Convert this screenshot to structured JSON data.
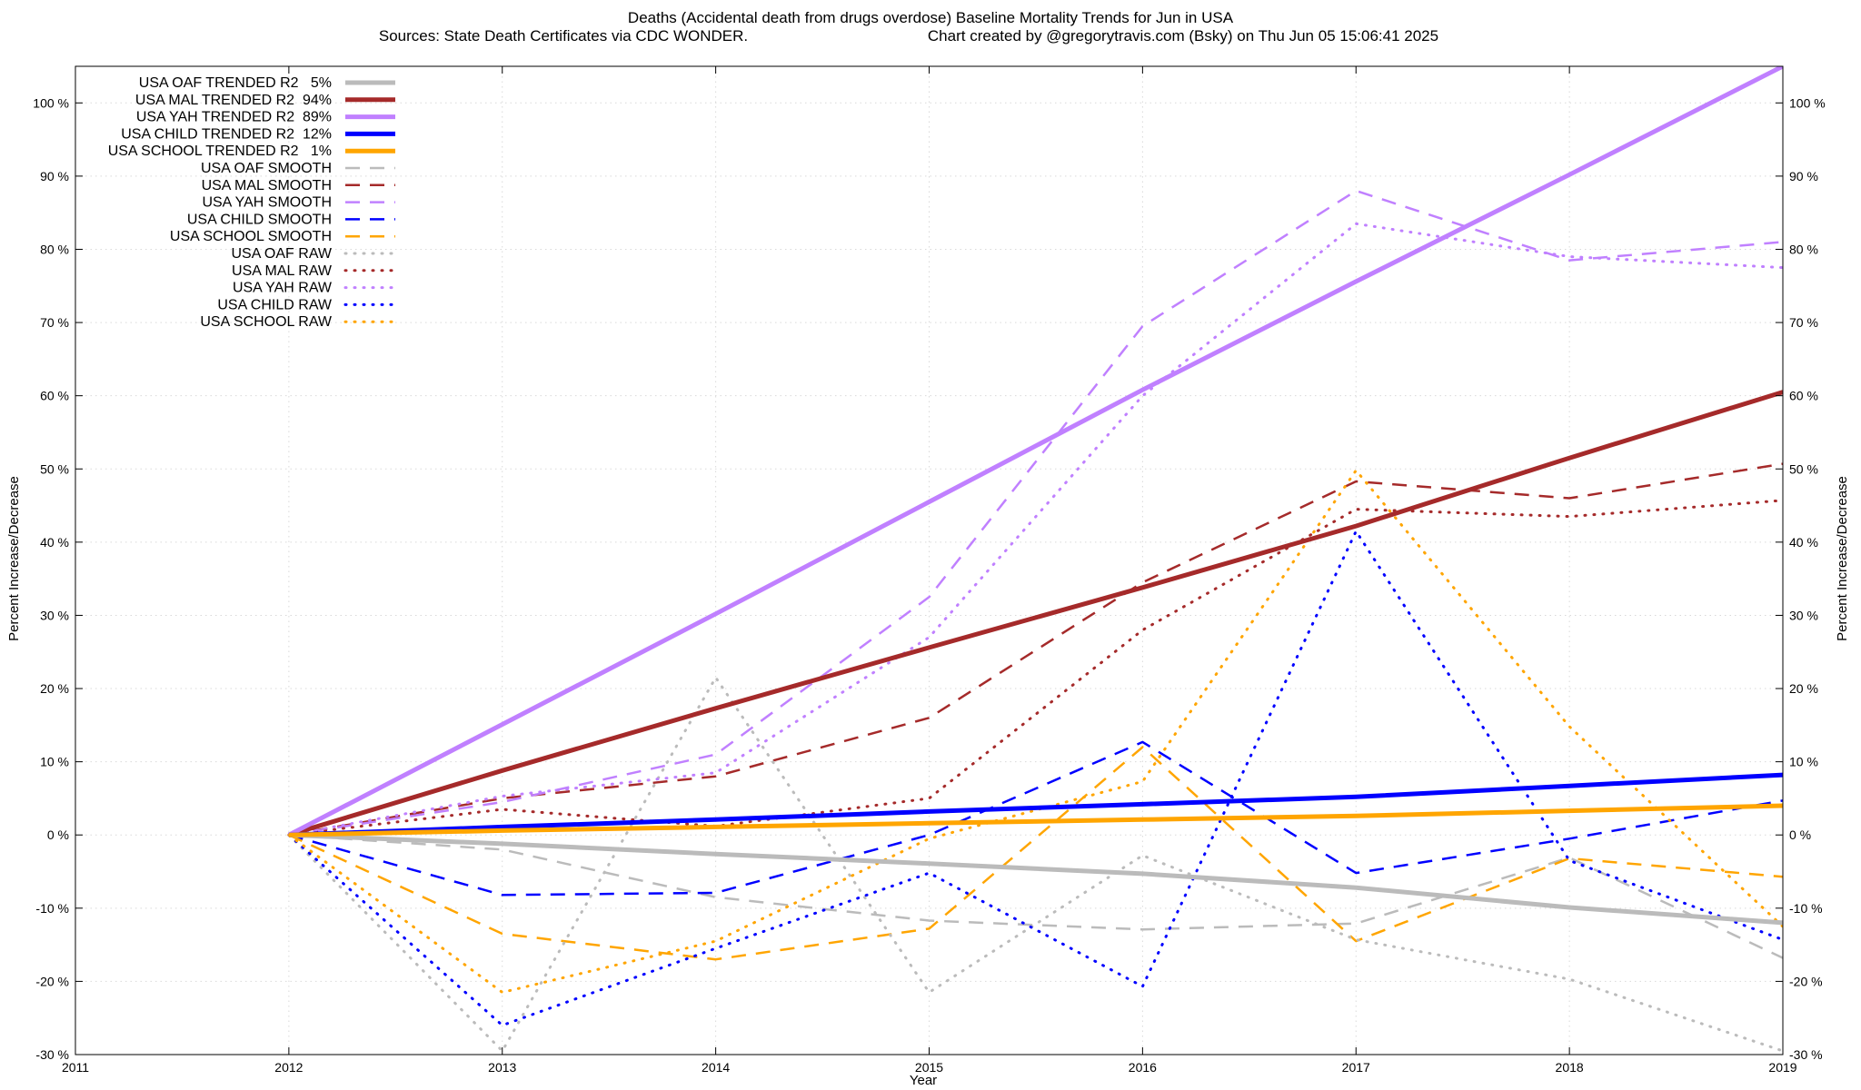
{
  "chart_data": {
    "type": "line",
    "title": "Deaths (Accidental death from drugs overdose)  Baseline Mortality Trends for Jun in USA",
    "subtitle_left": "Sources: State Death Certificates via CDC WONDER.",
    "subtitle_right": "Chart created by @gregorytravis.com (Bsky) on Thu Jun 05 15:06:41 2025",
    "xlabel": "Year",
    "ylabel_left": "Percent Increase/Decrease",
    "ylabel_right": "Percent Increase/Decrease",
    "xlim": [
      2011,
      2019
    ],
    "ylim": [
      -30,
      105
    ],
    "x_ticks": [
      2011,
      2012,
      2013,
      2014,
      2015,
      2016,
      2017,
      2018,
      2019
    ],
    "x_tick_labels": [
      "2011",
      "2012",
      "2013",
      "2014",
      "2015",
      "2016",
      "2017",
      "2018",
      "2019"
    ],
    "y_ticks": [
      -30,
      -20,
      -10,
      0,
      10,
      20,
      30,
      40,
      50,
      60,
      70,
      80,
      90,
      100
    ],
    "y_tick_labels": [
      "-30 %",
      "-20 %",
      "-10 %",
      "0 %",
      "10 %",
      "20 %",
      "30 %",
      "40 %",
      "50 %",
      "60 %",
      "70 %",
      "80 %",
      "90 %",
      "100 %"
    ],
    "grid": true,
    "legend_position": "top-left",
    "series": [
      {
        "name": "USA OAF TRENDED R2   5%",
        "style": "solid",
        "color": "#bbbbbb",
        "x": [
          2012,
          2013,
          2014,
          2015,
          2016,
          2017,
          2018,
          2019
        ],
        "values": [
          0,
          -1.2,
          -2.6,
          -3.9,
          -5.3,
          -7.2,
          -9.9,
          -12.0
        ]
      },
      {
        "name": "USA MAL TRENDED R2  94%",
        "style": "solid",
        "color": "#a52a2a",
        "x": [
          2012,
          2013,
          2014,
          2015,
          2016,
          2017,
          2018,
          2019
        ],
        "values": [
          0,
          8.8,
          17.3,
          25.6,
          33.8,
          42.2,
          51.5,
          60.5
        ]
      },
      {
        "name": "USA YAH TRENDED R2  89%",
        "style": "solid",
        "color": "#c080ff",
        "x": [
          2012,
          2013,
          2014,
          2015,
          2016,
          2017,
          2018,
          2019
        ],
        "values": [
          0,
          15.1,
          30.2,
          45.5,
          60.8,
          75.6,
          90.2,
          105
        ]
      },
      {
        "name": "USA CHILD TRENDED R2  12%",
        "style": "solid",
        "color": "#0000ff",
        "x": [
          2012,
          2013,
          2014,
          2015,
          2016,
          2017,
          2018,
          2019
        ],
        "values": [
          0,
          1.1,
          2.1,
          3.2,
          4.2,
          5.2,
          6.7,
          8.2
        ]
      },
      {
        "name": "USA SCHOOL TRENDED R2   1%",
        "style": "solid",
        "color": "#ffa500",
        "x": [
          2012,
          2013,
          2014,
          2015,
          2016,
          2017,
          2018,
          2019
        ],
        "values": [
          0,
          0.6,
          1.1,
          1.6,
          2.1,
          2.6,
          3.3,
          4.0
        ]
      },
      {
        "name": "USA OAF SMOOTH",
        "style": "dashed",
        "color": "#bbbbbb",
        "x": [
          2012,
          2013,
          2014,
          2015,
          2016,
          2017,
          2018,
          2019
        ],
        "values": [
          0,
          -2.0,
          -8.5,
          -11.7,
          -12.9,
          -12.1,
          -3.1,
          -16.8
        ]
      },
      {
        "name": "USA MAL SMOOTH",
        "style": "dashed",
        "color": "#a52a2a",
        "x": [
          2012,
          2013,
          2014,
          2015,
          2016,
          2017,
          2018,
          2019
        ],
        "values": [
          0,
          5.0,
          8.0,
          16.0,
          34.5,
          48.3,
          46.0,
          50.7
        ]
      },
      {
        "name": "USA YAH SMOOTH",
        "style": "dashed",
        "color": "#c080ff",
        "x": [
          2012,
          2013,
          2014,
          2015,
          2016,
          2017,
          2018,
          2019
        ],
        "values": [
          0,
          4.5,
          11.0,
          32.5,
          69.5,
          88.0,
          78.5,
          81.0
        ]
      },
      {
        "name": "USA CHILD SMOOTH",
        "style": "dashed",
        "color": "#0000ff",
        "x": [
          2012,
          2013,
          2014,
          2015,
          2016,
          2017,
          2018,
          2019
        ],
        "values": [
          0,
          -8.2,
          -7.9,
          0.0,
          12.7,
          -5.2,
          -0.5,
          4.7
        ]
      },
      {
        "name": "USA SCHOOL SMOOTH",
        "style": "dashed",
        "color": "#ffa500",
        "x": [
          2012,
          2013,
          2014,
          2015,
          2016,
          2017,
          2018,
          2019
        ],
        "values": [
          0,
          -13.5,
          -17.0,
          -12.8,
          12.0,
          -14.5,
          -3.2,
          -5.7
        ]
      },
      {
        "name": "USA OAF RAW",
        "style": "dotted",
        "color": "#bbbbbb",
        "x": [
          2012,
          2013,
          2014,
          2015,
          2016,
          2017,
          2018,
          2019
        ],
        "values": [
          0,
          -29.5,
          21.5,
          -21.5,
          -2.8,
          -14.3,
          -19.7,
          -29.5
        ]
      },
      {
        "name": "USA MAL RAW",
        "style": "dotted",
        "color": "#a52a2a",
        "x": [
          2012,
          2013,
          2014,
          2015,
          2016,
          2017,
          2018,
          2019
        ],
        "values": [
          0,
          3.5,
          1.2,
          5.0,
          28.0,
          44.5,
          43.5,
          45.7
        ]
      },
      {
        "name": "USA YAH RAW",
        "style": "dotted",
        "color": "#c080ff",
        "x": [
          2012,
          2013,
          2014,
          2015,
          2016,
          2017,
          2018,
          2019
        ],
        "values": [
          0,
          5.3,
          8.5,
          27.0,
          60.0,
          83.5,
          79.0,
          77.5
        ]
      },
      {
        "name": "USA CHILD RAW",
        "style": "dotted",
        "color": "#0000ff",
        "x": [
          2012,
          2013,
          2014,
          2015,
          2016,
          2017,
          2018,
          2019
        ],
        "values": [
          0,
          -26.0,
          -15.5,
          -5.2,
          -20.7,
          41.5,
          -3.5,
          -14.3
        ]
      },
      {
        "name": "USA SCHOOL RAW",
        "style": "dotted",
        "color": "#ffa500",
        "x": [
          2012,
          2013,
          2014,
          2015,
          2016,
          2017,
          2018,
          2019
        ],
        "values": [
          0,
          -21.5,
          -14.5,
          -0.5,
          7.3,
          49.8,
          14.8,
          -12.5
        ]
      }
    ]
  }
}
